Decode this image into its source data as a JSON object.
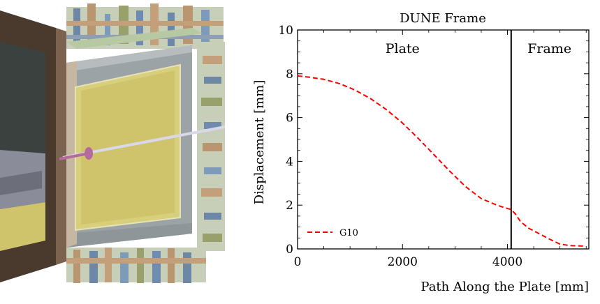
{
  "render": {
    "colors": {
      "outer_frame": "#4a3a2e",
      "outer_frame_light": "#7b6350",
      "plate": "#d8cf7c",
      "plate_inner": "#cfc46c",
      "frame_bar": "#9ca3a6",
      "rod": "#d8d8e8",
      "rod_head": "#b56a9d",
      "lattice": [
        "#6d87a6",
        "#b99670",
        "#9aa06b",
        "#6f8bb0",
        "#c4a07a",
        "#7d9ab8"
      ]
    }
  },
  "chart_data": {
    "type": "line",
    "title": "DUNE Frame",
    "xlabel": "Path Along the Plate [mm]",
    "ylabel": "Displacement [mm]",
    "xlim": [
      0,
      5550
    ],
    "ylim": [
      0,
      10
    ],
    "xticks": [
      0,
      2000,
      4000
    ],
    "yticks": [
      0,
      2,
      4,
      6,
      8,
      10
    ],
    "grid": false,
    "legend_position": "lower-left",
    "divider_x": 4070,
    "regions": [
      {
        "label": "Plate",
        "x": 2000
      },
      {
        "label": "Frame",
        "x": 4800
      }
    ],
    "series": [
      {
        "name": "G10",
        "color": "#ff0000",
        "style": "dashed",
        "x": [
          0,
          200,
          500,
          800,
          1100,
          1400,
          1700,
          2000,
          2300,
          2600,
          2900,
          3200,
          3500,
          3800,
          3950,
          4070,
          4150,
          4250,
          4400,
          4600,
          4800,
          5000,
          5200,
          5450
        ],
        "y": [
          7.9,
          7.85,
          7.75,
          7.55,
          7.25,
          6.85,
          6.35,
          5.75,
          5.05,
          4.3,
          3.55,
          2.85,
          2.3,
          2.0,
          1.88,
          1.8,
          1.6,
          1.25,
          0.95,
          0.7,
          0.45,
          0.22,
          0.15,
          0.13
        ]
      }
    ]
  }
}
